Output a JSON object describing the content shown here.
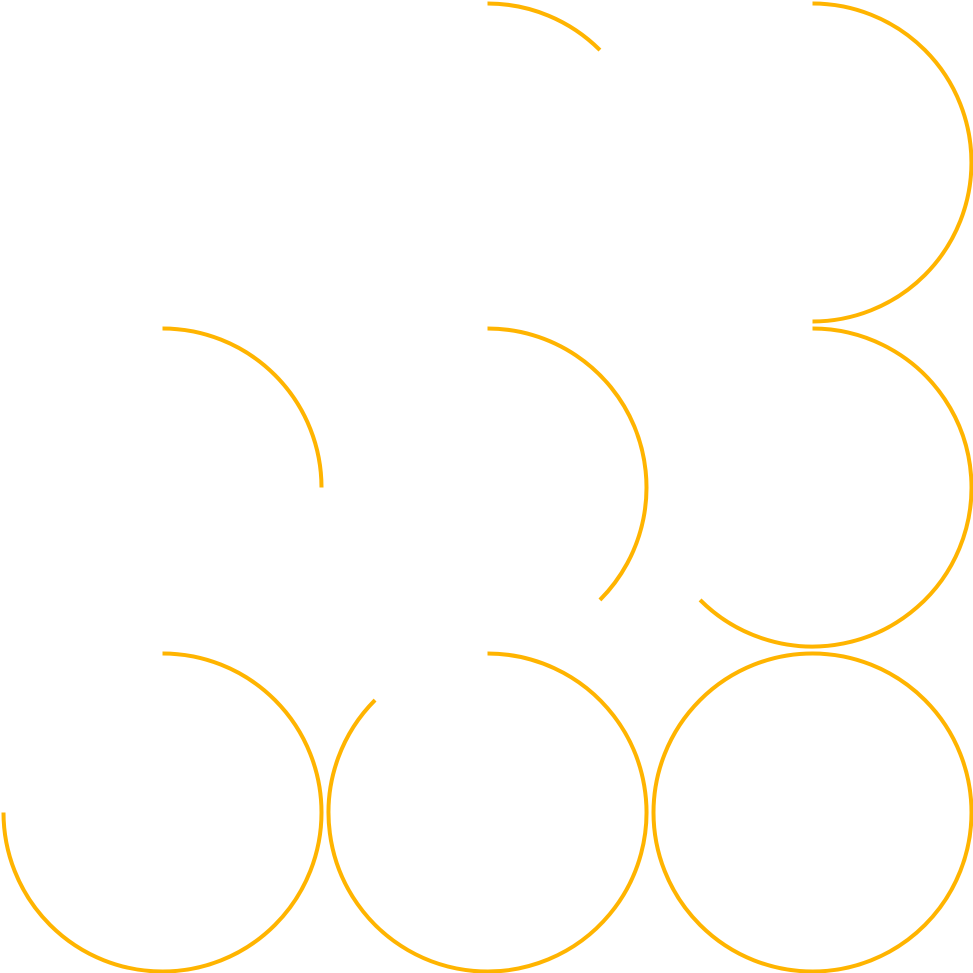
{
  "figure": {
    "stroke_color": "#FFB400",
    "background_color": "#FFFFFF",
    "grid": {
      "rows": 3,
      "columns": 3
    },
    "arcs": [
      {
        "name": "arc-r1-c2",
        "row": 1,
        "col": 2,
        "sweep_degrees": 45,
        "progress": 0.125
      },
      {
        "name": "arc-r1-c3",
        "row": 1,
        "col": 3,
        "sweep_degrees": 180,
        "progress": 0.5
      },
      {
        "name": "arc-r2-c1",
        "row": 2,
        "col": 1,
        "sweep_degrees": 90,
        "progress": 0.25
      },
      {
        "name": "arc-r2-c2",
        "row": 2,
        "col": 2,
        "sweep_degrees": 135,
        "progress": 0.375
      },
      {
        "name": "arc-r2-c3",
        "row": 2,
        "col": 3,
        "sweep_degrees": 225,
        "progress": 0.625
      },
      {
        "name": "arc-r3-c1",
        "row": 3,
        "col": 1,
        "sweep_degrees": 270,
        "progress": 0.75
      },
      {
        "name": "arc-r3-c2",
        "row": 3,
        "col": 2,
        "sweep_degrees": 315,
        "progress": 0.875
      },
      {
        "name": "arc-r3-c3",
        "row": 3,
        "col": 3,
        "sweep_degrees": 360,
        "progress": 1.0
      }
    ]
  }
}
